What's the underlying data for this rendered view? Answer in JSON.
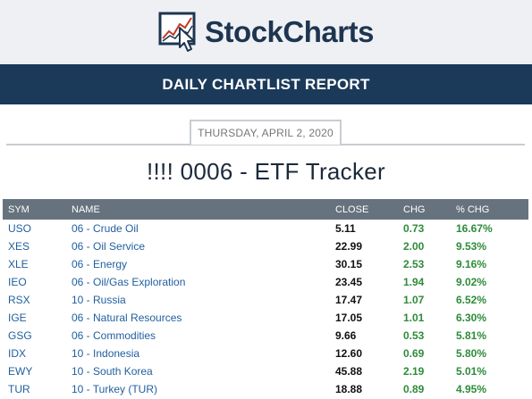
{
  "brand": {
    "name": "StockCharts"
  },
  "report": {
    "banner": "DAILY CHARTLIST REPORT",
    "date": "THURSDAY, APRIL 2, 2020",
    "title": "!!!! 0006 - ETF Tracker"
  },
  "table": {
    "headers": {
      "sym": "SYM",
      "name": "NAME",
      "close": "CLOSE",
      "chg": "CHG",
      "pct": "% CHG"
    },
    "rows": [
      {
        "sym": "USO",
        "name": "06 - Crude Oil",
        "close": "5.11",
        "chg": "0.73",
        "pct": "16.67%"
      },
      {
        "sym": "XES",
        "name": "06 - Oil Service",
        "close": "22.99",
        "chg": "2.00",
        "pct": "9.53%"
      },
      {
        "sym": "XLE",
        "name": "06 - Energy",
        "close": "30.15",
        "chg": "2.53",
        "pct": "9.16%"
      },
      {
        "sym": "IEO",
        "name": "06 - Oil/Gas Exploration",
        "close": "23.45",
        "chg": "1.94",
        "pct": "9.02%"
      },
      {
        "sym": "RSX",
        "name": "10 - Russia",
        "close": "17.47",
        "chg": "1.07",
        "pct": "6.52%"
      },
      {
        "sym": "IGE",
        "name": "06 - Natural Resources",
        "close": "17.05",
        "chg": "1.01",
        "pct": "6.30%"
      },
      {
        "sym": "GSG",
        "name": "06 - Commodities",
        "close": "9.66",
        "chg": "0.53",
        "pct": "5.81%"
      },
      {
        "sym": "IDX",
        "name": "10 - Indonesia",
        "close": "12.60",
        "chg": "0.69",
        "pct": "5.80%"
      },
      {
        "sym": "EWY",
        "name": "10 - South Korea",
        "close": "45.88",
        "chg": "2.19",
        "pct": "5.01%"
      },
      {
        "sym": "TUR",
        "name": "10 - Turkey (TUR)",
        "close": "18.88",
        "chg": "0.89",
        "pct": "4.95%"
      }
    ]
  },
  "colors": {
    "banner": "#1b3a5a",
    "table_header": "#66737e",
    "link": "#1f5f9e",
    "positive": "#2e8b3a"
  }
}
